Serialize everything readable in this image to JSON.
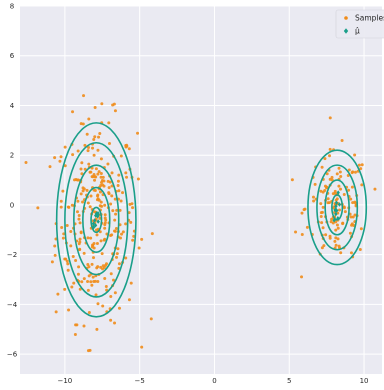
{
  "chart_data": {
    "type": "scatter",
    "title": "",
    "xlabel": "",
    "ylabel": "",
    "xlim": [
      -13,
      11.2
    ],
    "ylim": [
      -6.8,
      8
    ],
    "xticks": [
      -10,
      -5,
      0,
      5,
      10
    ],
    "yticks": [
      -6,
      -4,
      -2,
      0,
      2,
      4,
      6,
      8
    ],
    "grid": true,
    "background": "#eaeaf2",
    "legend": {
      "placement": "top-right",
      "entries": [
        {
          "label": "Samples",
          "marker": "circle",
          "color": "#f08c1a"
        },
        {
          "label": "μ̂",
          "marker": "diamond",
          "color": "#1a9f8a"
        }
      ]
    },
    "clusters": [
      {
        "center": [
          -7.9,
          -0.6
        ],
        "spread": [
          1.35,
          2.0
        ],
        "n_samples": 330,
        "contours": {
          "color": "#1a9f8a",
          "half_widths": [
            0.35,
            0.9,
            1.5,
            2.1,
            2.65
          ],
          "half_heights": [
            0.5,
            1.3,
            2.2,
            3.1,
            3.9
          ]
        }
      },
      {
        "center": [
          8.2,
          -0.1
        ],
        "spread": [
          1.05,
          1.1
        ],
        "n_samples": 150,
        "contours": {
          "color": "#1a9f8a",
          "half_widths": [
            0.35,
            0.8,
            1.35,
            1.95
          ],
          "half_heights": [
            0.5,
            1.1,
            1.7,
            2.3
          ]
        }
      }
    ]
  }
}
